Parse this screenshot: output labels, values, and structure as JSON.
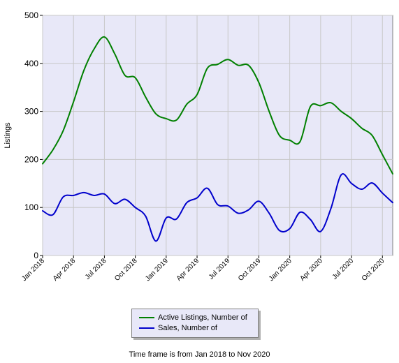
{
  "chart_data": {
    "type": "line",
    "ylabel": "Listings",
    "xlabel": "",
    "ylim": [
      0,
      500
    ],
    "yticks": [
      0,
      100,
      200,
      300,
      400,
      500
    ],
    "grid": true,
    "legend_position": "bottom-center",
    "x": [
      "Jan 2018",
      "Feb 2018",
      "Mar 2018",
      "Apr 2018",
      "May 2018",
      "Jun 2018",
      "Jul 2018",
      "Aug 2018",
      "Sep 2018",
      "Oct 2018",
      "Nov 2018",
      "Dec 2018",
      "Jan 2019",
      "Feb 2019",
      "Mar 2019",
      "Apr 2019",
      "May 2019",
      "Jun 2019",
      "Jul 2019",
      "Aug 2019",
      "Sep 2019",
      "Oct 2019",
      "Nov 2019",
      "Dec 2019",
      "Jan 2020",
      "Feb 2020",
      "Mar 2020",
      "Apr 2020",
      "May 2020",
      "Jun 2020",
      "Jul 2020",
      "Aug 2020",
      "Sep 2020",
      "Oct 2020",
      "Nov 2020"
    ],
    "xtick_labels": [
      "Jan 2018",
      "Apr 2018",
      "Jul 2018",
      "Oct 2018",
      "Jan 2019",
      "Apr 2019",
      "Jul 2019",
      "Oct 2019",
      "Jan 2020",
      "Apr 2020",
      "Jul 2020",
      "Oct 2020"
    ],
    "series": [
      {
        "name": "Active Listings, Number of",
        "color": "#008000",
        "values": [
          191,
          220,
          260,
          320,
          385,
          430,
          455,
          420,
          375,
          370,
          330,
          295,
          285,
          282,
          315,
          335,
          390,
          398,
          408,
          396,
          396,
          360,
          300,
          250,
          240,
          237,
          310,
          312,
          318,
          300,
          285,
          265,
          250,
          210,
          170
        ]
      },
      {
        "name": "Sales, Number of",
        "color": "#0000cc",
        "values": [
          93,
          85,
          122,
          125,
          131,
          125,
          128,
          108,
          117,
          100,
          82,
          30,
          78,
          76,
          110,
          120,
          140,
          106,
          103,
          88,
          95,
          113,
          88,
          52,
          56,
          90,
          75,
          50,
          98,
          168,
          150,
          138,
          151,
          130,
          110
        ]
      }
    ]
  },
  "legend": {
    "items": [
      {
        "label": "Active Listings, Number of",
        "color": "#008000"
      },
      {
        "label": "Sales, Number of",
        "color": "#0000cc"
      }
    ]
  },
  "footer": {
    "text": "Time frame is from Jan 2018 to Nov 2020"
  }
}
